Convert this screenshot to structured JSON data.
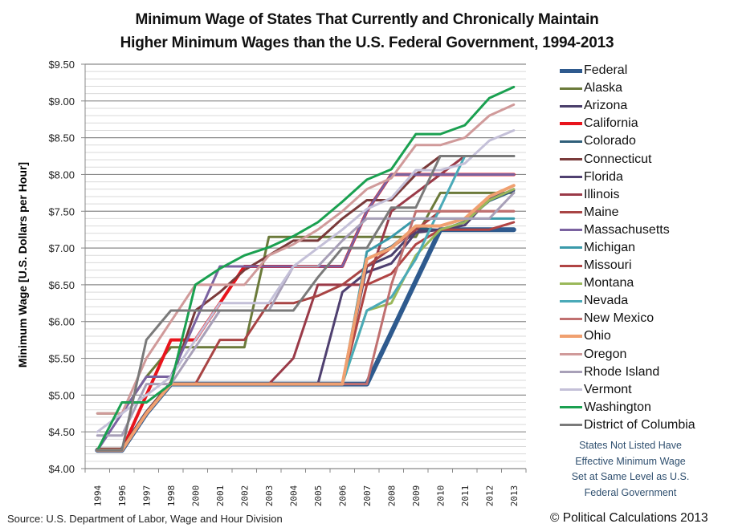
{
  "chart_data": {
    "type": "line",
    "title": [
      "Minimum Wage of States That Currently and Chronically Maintain",
      "Higher Minimum Wages than the U.S. Federal Government, 1994-2013"
    ],
    "xlabel": "",
    "ylabel": "Minimum Wage [U.S. Dollars per Hour]",
    "ylim": [
      4.0,
      9.5
    ],
    "y_ticks": [
      "$4.00",
      "$4.50",
      "$5.00",
      "$5.50",
      "$6.00",
      "$6.50",
      "$7.00",
      "$7.50",
      "$8.00",
      "$8.50",
      "$9.00",
      "$9.50"
    ],
    "y_tick_values": [
      4.0,
      4.5,
      5.0,
      5.5,
      6.0,
      6.5,
      7.0,
      7.5,
      8.0,
      8.5,
      9.0,
      9.5
    ],
    "categories": [
      "1994",
      "1996",
      "1997",
      "1998",
      "2000",
      "2001",
      "2002",
      "2003",
      "2004",
      "2005",
      "2006",
      "2007",
      "2008",
      "2009",
      "2010",
      "2011",
      "2012",
      "2013"
    ],
    "grid": true,
    "legend_position": "right",
    "series": [
      {
        "name": "Federal",
        "color": "#2e5a8e",
        "width": 6,
        "values": [
          4.25,
          4.25,
          4.75,
          5.15,
          5.15,
          5.15,
          5.15,
          5.15,
          5.15,
          5.15,
          5.15,
          5.15,
          5.85,
          6.55,
          7.25,
          7.25,
          7.25,
          7.25
        ]
      },
      {
        "name": "Alaska",
        "color": "#6b7a3a",
        "width": 3,
        "values": [
          4.75,
          4.75,
          5.25,
          5.65,
          5.65,
          5.65,
          5.65,
          7.15,
          7.15,
          7.15,
          7.15,
          7.15,
          7.15,
          7.15,
          7.75,
          7.75,
          7.75,
          7.75
        ]
      },
      {
        "name": "Arizona",
        "color": "#4a3f6b",
        "width": 3,
        "values": [
          4.25,
          4.25,
          4.75,
          5.15,
          5.15,
          5.15,
          5.15,
          5.15,
          5.15,
          5.15,
          5.15,
          6.75,
          6.9,
          7.25,
          7.25,
          7.35,
          7.65,
          7.8
        ]
      },
      {
        "name": "California",
        "color": "#e8141c",
        "width": 4,
        "values": [
          4.25,
          4.25,
          5.0,
          5.75,
          5.75,
          6.25,
          6.75,
          6.75,
          6.75,
          6.75,
          6.75,
          7.5,
          8.0,
          8.0,
          8.0,
          8.0,
          8.0,
          8.0
        ]
      },
      {
        "name": "Colorado",
        "color": "#2f5f7a",
        "width": 3,
        "values": [
          4.25,
          4.25,
          4.75,
          5.15,
          5.15,
          5.15,
          5.15,
          5.15,
          5.15,
          5.15,
          5.15,
          6.85,
          7.02,
          7.28,
          7.24,
          7.36,
          7.64,
          7.78
        ]
      },
      {
        "name": "Connecticut",
        "color": "#7a3a3a",
        "width": 3,
        "values": [
          4.27,
          4.27,
          4.77,
          5.18,
          6.15,
          6.4,
          6.7,
          6.9,
          7.1,
          7.1,
          7.4,
          7.65,
          7.65,
          8.0,
          8.25,
          8.25,
          8.25,
          8.25
        ]
      },
      {
        "name": "Florida",
        "color": "#4f4070",
        "width": 3,
        "values": [
          4.25,
          4.25,
          4.75,
          5.15,
          5.15,
          5.15,
          5.15,
          5.15,
          5.15,
          5.15,
          6.4,
          6.67,
          6.79,
          7.21,
          7.25,
          7.31,
          7.67,
          7.79
        ]
      },
      {
        "name": "Illinois",
        "color": "#9a3a48",
        "width": 3,
        "values": [
          4.25,
          4.25,
          4.75,
          5.15,
          5.15,
          5.15,
          5.15,
          5.15,
          5.5,
          6.5,
          6.5,
          6.5,
          7.5,
          7.75,
          8.0,
          8.25,
          8.25,
          8.25
        ]
      },
      {
        "name": "Maine",
        "color": "#a84444",
        "width": 3,
        "values": [
          4.25,
          4.25,
          4.75,
          5.15,
          5.15,
          5.75,
          5.75,
          6.25,
          6.25,
          6.35,
          6.5,
          6.75,
          7.0,
          7.25,
          7.5,
          7.5,
          7.5,
          7.5
        ]
      },
      {
        "name": "Massachusetts",
        "color": "#7a62a0",
        "width": 3,
        "values": [
          4.25,
          4.75,
          5.25,
          5.25,
          6.0,
          6.75,
          6.75,
          6.75,
          6.75,
          6.75,
          6.75,
          7.5,
          8.0,
          8.0,
          8.0,
          8.0,
          8.0,
          8.0
        ]
      },
      {
        "name": "Michigan",
        "color": "#3a9aaa",
        "width": 3,
        "values": [
          4.25,
          4.25,
          4.75,
          5.15,
          5.15,
          5.15,
          5.15,
          5.15,
          5.15,
          5.15,
          5.15,
          6.95,
          7.15,
          7.4,
          7.4,
          7.4,
          7.4,
          7.4
        ]
      },
      {
        "name": "Missouri",
        "color": "#b04444",
        "width": 3,
        "values": [
          4.25,
          4.25,
          4.75,
          5.15,
          5.15,
          5.15,
          5.15,
          5.15,
          5.15,
          5.15,
          5.15,
          6.5,
          6.65,
          7.05,
          7.25,
          7.25,
          7.25,
          7.35
        ]
      },
      {
        "name": "Montana",
        "color": "#9ab85a",
        "width": 3,
        "values": [
          4.25,
          4.25,
          4.75,
          5.15,
          5.15,
          5.15,
          5.15,
          5.15,
          5.15,
          5.15,
          5.15,
          6.15,
          6.25,
          6.9,
          7.25,
          7.35,
          7.65,
          7.8
        ]
      },
      {
        "name": "Nevada",
        "color": "#4aaab8",
        "width": 3,
        "values": [
          4.25,
          4.25,
          4.75,
          5.15,
          5.15,
          5.15,
          5.15,
          5.15,
          5.15,
          5.15,
          5.15,
          6.15,
          6.33,
          6.85,
          7.55,
          8.25,
          8.25,
          8.25
        ]
      },
      {
        "name": "New Mexico",
        "color": "#c07070",
        "width": 3,
        "values": [
          4.25,
          4.25,
          4.75,
          5.15,
          5.15,
          5.15,
          5.15,
          5.15,
          5.15,
          5.15,
          5.15,
          5.15,
          6.5,
          7.5,
          7.5,
          7.5,
          7.5,
          7.5
        ]
      },
      {
        "name": "Ohio",
        "color": "#f0a070",
        "width": 4,
        "values": [
          4.25,
          4.25,
          4.75,
          5.15,
          5.15,
          5.15,
          5.15,
          5.15,
          5.15,
          5.15,
          5.15,
          6.85,
          7.0,
          7.3,
          7.3,
          7.4,
          7.7,
          7.85
        ]
      },
      {
        "name": "Oregon",
        "color": "#d09a9a",
        "width": 3,
        "values": [
          4.75,
          4.75,
          5.5,
          6.0,
          6.5,
          6.5,
          6.5,
          6.9,
          7.05,
          7.25,
          7.5,
          7.8,
          7.95,
          8.4,
          8.4,
          8.5,
          8.8,
          8.95
        ]
      },
      {
        "name": "Rhode Island",
        "color": "#a8a0b8",
        "width": 3,
        "values": [
          4.45,
          4.45,
          5.15,
          5.15,
          5.65,
          6.15,
          6.15,
          6.15,
          6.75,
          6.75,
          7.1,
          7.4,
          7.4,
          7.4,
          7.4,
          7.4,
          7.4,
          7.75
        ]
      },
      {
        "name": "Vermont",
        "color": "#c4c0d8",
        "width": 3,
        "values": [
          4.5,
          4.75,
          5.0,
          5.25,
          5.75,
          6.25,
          6.25,
          6.25,
          6.75,
          7.0,
          7.25,
          7.53,
          7.68,
          8.06,
          8.06,
          8.15,
          8.46,
          8.6
        ]
      },
      {
        "name": "Washington",
        "color": "#1aa050",
        "width": 3,
        "values": [
          4.25,
          4.9,
          4.9,
          5.15,
          6.5,
          6.72,
          6.9,
          7.01,
          7.16,
          7.35,
          7.63,
          7.93,
          8.07,
          8.55,
          8.55,
          8.67,
          9.04,
          9.19
        ]
      },
      {
        "name": "District of Columbia",
        "color": "#7a7a7a",
        "width": 3,
        "values": [
          4.25,
          4.25,
          5.75,
          6.15,
          6.15,
          6.15,
          6.15,
          6.15,
          6.15,
          6.6,
          7.0,
          7.0,
          7.55,
          7.55,
          8.25,
          8.25,
          8.25,
          8.25
        ]
      }
    ]
  },
  "note": [
    "States Not Listed Have",
    "Effective Minimum Wage",
    "Set at Same Level as U.S.",
    "Federal Government"
  ],
  "source": "Source: U.S. Department of Labor, Wage and Hour Division",
  "copyright": "© Political Calculations 2013"
}
